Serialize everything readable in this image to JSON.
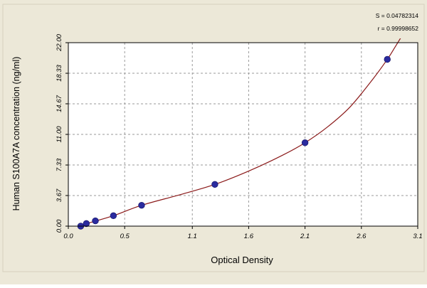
{
  "colors": {
    "panel": "#ECE8D8",
    "plot_bg": "#FFFFFF",
    "grid": "#9A9A9A",
    "curve": "#8B1A1A",
    "points": "#2B2B9F",
    "axis": "#000000"
  },
  "chart_data": {
    "type": "scatter",
    "xlabel": "Optical Density",
    "ylabel": "Human S100A7A concentration (ng/ml)",
    "stats": [
      "S = 0.04782314",
      "r = 0.99998652"
    ],
    "xlim": [
      0,
      3.1
    ],
    "ylim": [
      0,
      22
    ],
    "x_ticks": [
      0.0,
      0.5,
      1.1,
      1.6,
      2.1,
      2.6,
      3.1
    ],
    "x_tick_labels": [
      "0.0",
      "0.5",
      "1.1",
      "1.6",
      "2.1",
      "2.6",
      "3.1"
    ],
    "y_ticks": [
      0,
      3.67,
      7.33,
      11.0,
      14.67,
      18.33,
      22.0
    ],
    "y_tick_labels": [
      "0.00",
      "3.67",
      "7.33",
      "11.00",
      "14.67",
      "18.33",
      "22.00"
    ],
    "grid": true,
    "series": [
      {
        "points": [
          {
            "x": 0.11,
            "y": 0.0
          },
          {
            "x": 0.16,
            "y": 0.31
          },
          {
            "x": 0.24,
            "y": 0.63
          },
          {
            "x": 0.4,
            "y": 1.25
          },
          {
            "x": 0.65,
            "y": 2.5
          },
          {
            "x": 1.3,
            "y": 5.0
          },
          {
            "x": 2.1,
            "y": 10.0
          },
          {
            "x": 2.83,
            "y": 20.0
          }
        ]
      }
    ],
    "fit_curve": [
      {
        "x": 0.09,
        "y": 0.0
      },
      {
        "x": 0.2,
        "y": 0.45
      },
      {
        "x": 0.4,
        "y": 1.25
      },
      {
        "x": 0.65,
        "y": 2.5
      },
      {
        "x": 1.0,
        "y": 3.8
      },
      {
        "x": 1.3,
        "y": 5.0
      },
      {
        "x": 1.6,
        "y": 6.6
      },
      {
        "x": 1.9,
        "y": 8.5
      },
      {
        "x": 2.1,
        "y": 10.0
      },
      {
        "x": 2.3,
        "y": 11.9
      },
      {
        "x": 2.5,
        "y": 14.3
      },
      {
        "x": 2.7,
        "y": 17.6
      },
      {
        "x": 2.83,
        "y": 20.0
      },
      {
        "x": 2.9,
        "y": 21.5
      },
      {
        "x": 2.95,
        "y": 22.6
      }
    ]
  }
}
